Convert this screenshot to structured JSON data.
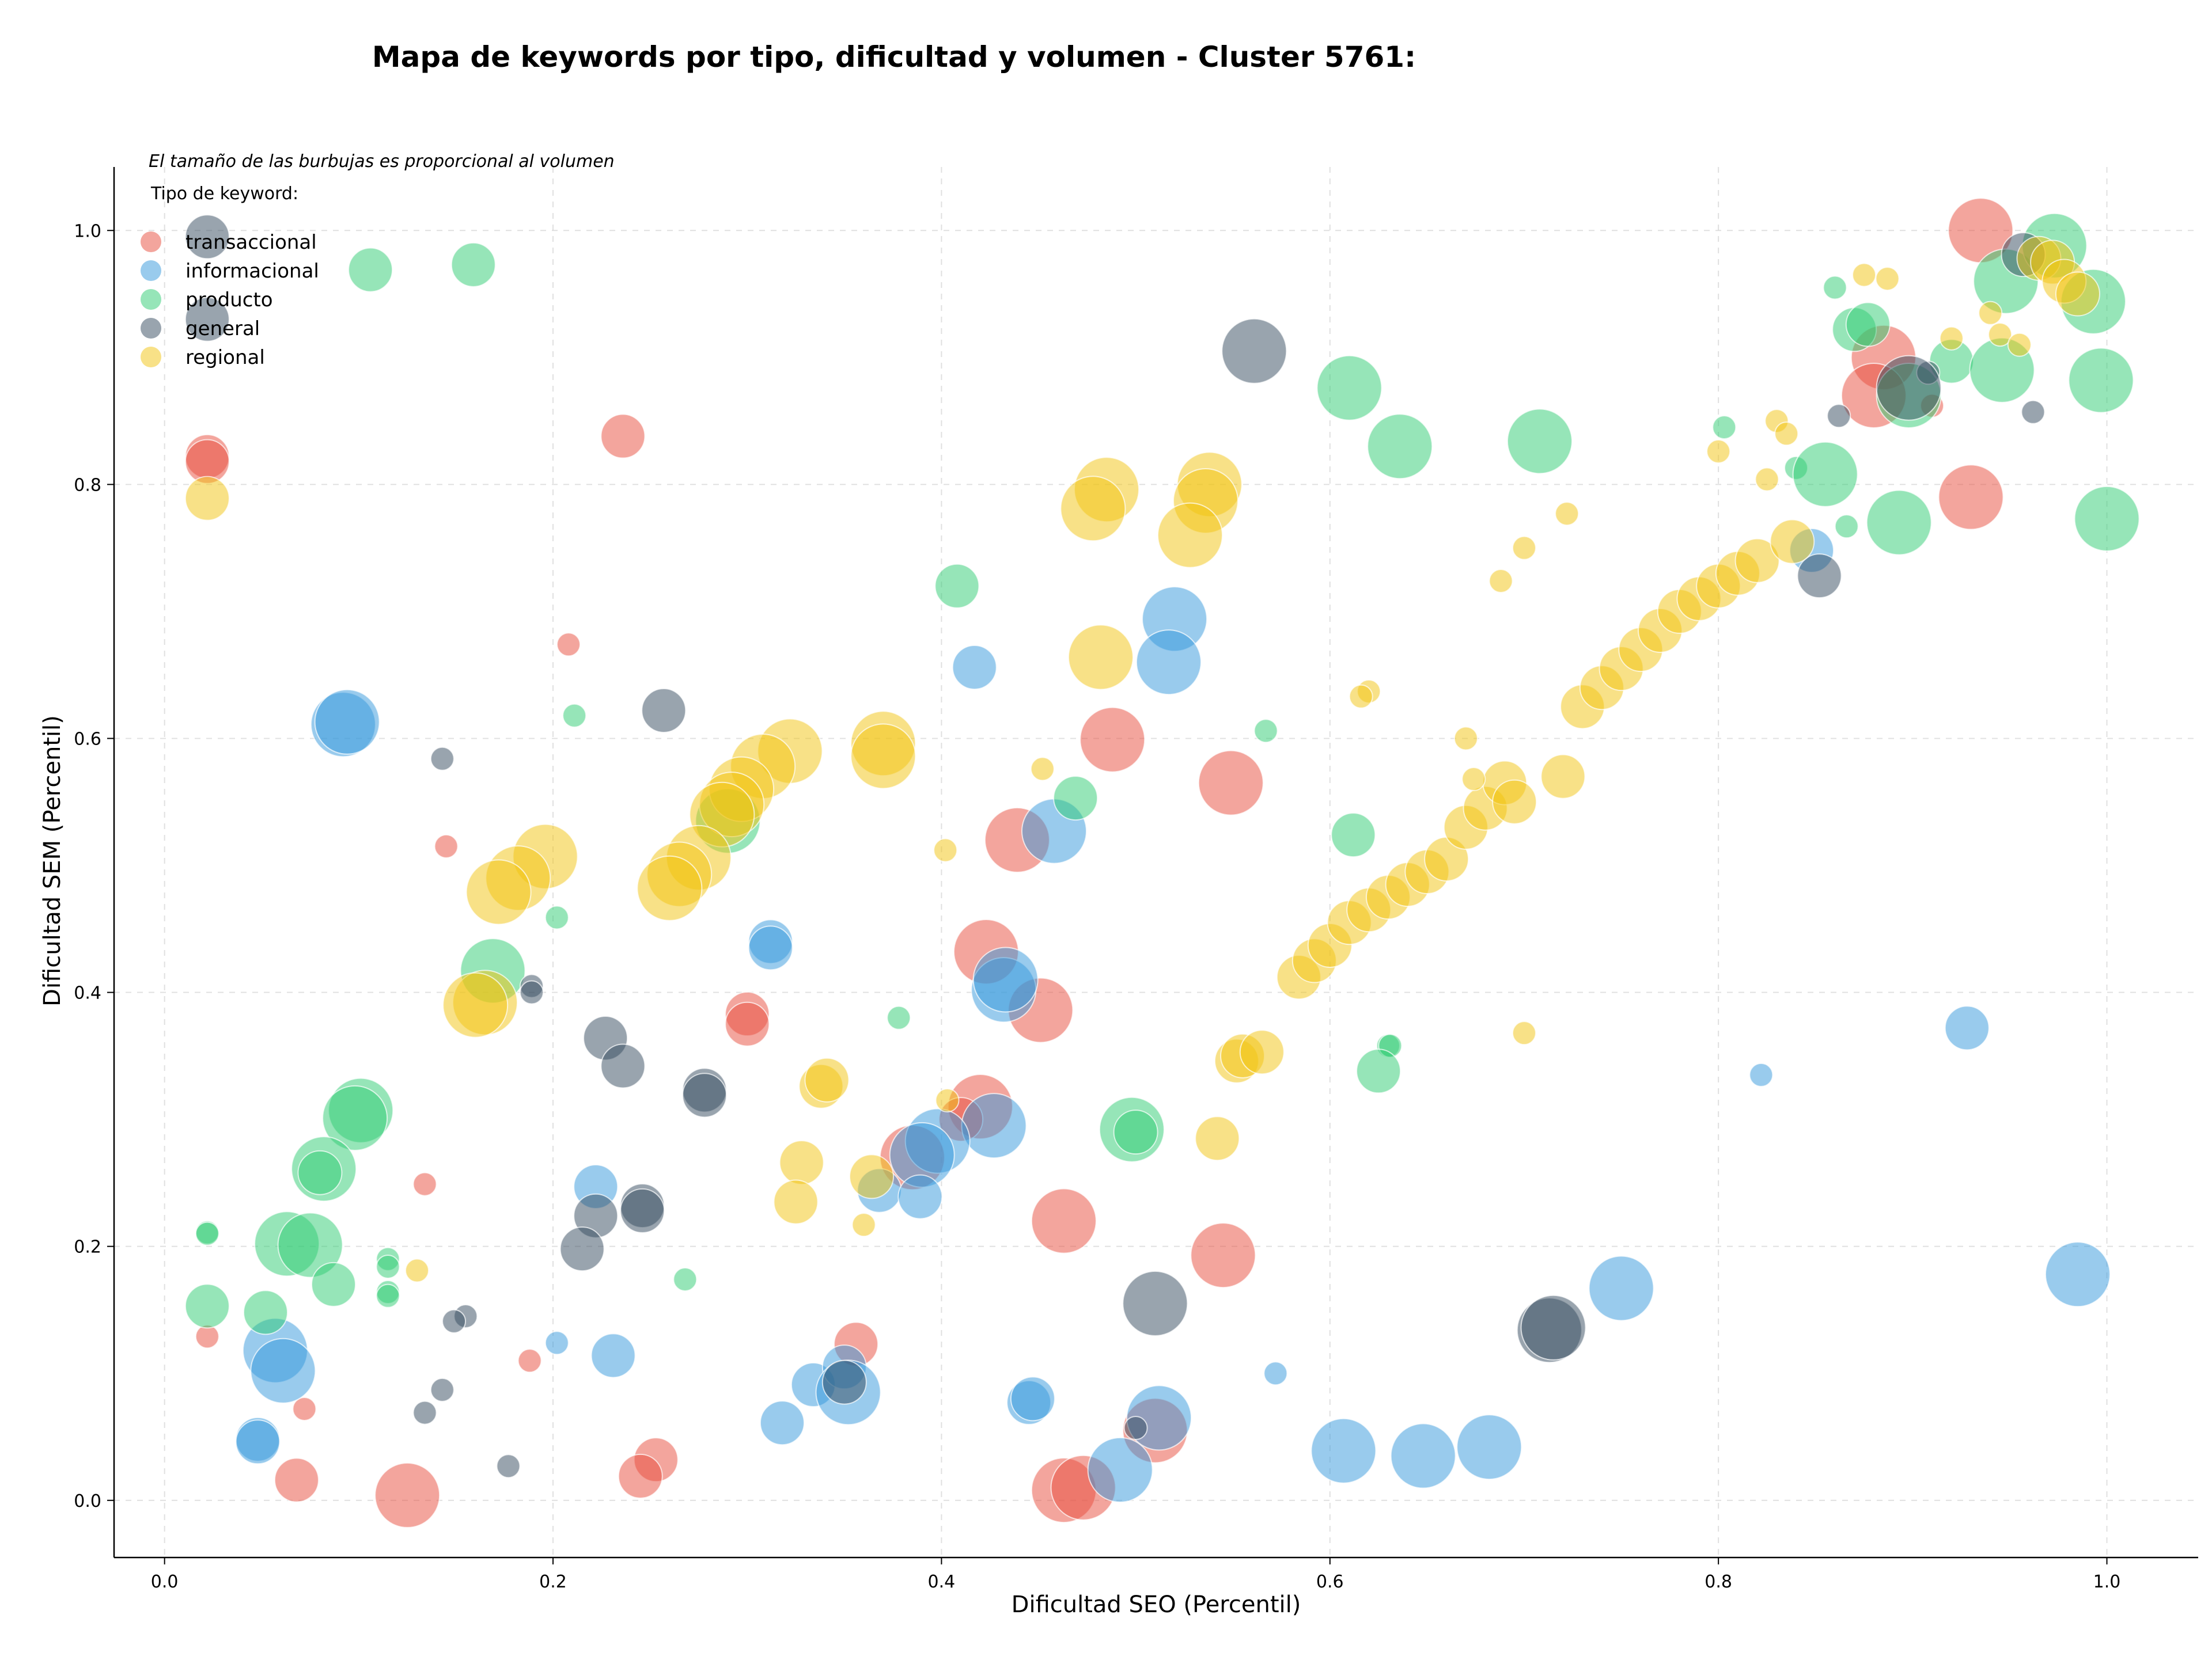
{
  "chart_data": {
    "type": "scatter",
    "title": "Mapa de keywords por tipo, dificultad y volumen - Cluster 5761:",
    "xlabel": "Dificultad SEO (Percentil)",
    "ylabel": "Dificultad SEM (Percentil)",
    "xlim": [
      -0.026,
      1.047
    ],
    "ylim": [
      -0.045,
      1.05
    ],
    "xticks": [
      "0.0",
      "0.2",
      "0.4",
      "0.6",
      "0.8",
      "1.0"
    ],
    "yticks": [
      "0.0",
      "0.2",
      "0.4",
      "0.6",
      "0.8",
      "1.0"
    ],
    "grid": true,
    "note": "El tamaño de las burbujas es proporcional al volumen",
    "legend": {
      "title": "Tipo de keyword:",
      "placement": "top-left"
    },
    "series": [
      {
        "name": "transaccional",
        "color": "#e74c3c",
        "points": [
          [
            0.935,
            1.0,
            3
          ],
          [
            0.885,
            0.9,
            3
          ],
          [
            0.88,
            0.87,
            3
          ],
          [
            0.93,
            0.79,
            3
          ],
          [
            0.022,
            0.822,
            2
          ],
          [
            0.022,
            0.818,
            2
          ],
          [
            0.236,
            0.838,
            2
          ],
          [
            0.208,
            0.674,
            1
          ],
          [
            0.488,
            0.599,
            3
          ],
          [
            0.549,
            0.565,
            3
          ],
          [
            0.439,
            0.52,
            3
          ],
          [
            0.145,
            0.515,
            1
          ],
          [
            0.423,
            0.432,
            3
          ],
          [
            0.451,
            0.386,
            3
          ],
          [
            0.3,
            0.383,
            2
          ],
          [
            0.3,
            0.375,
            2
          ],
          [
            0.42,
            0.31,
            3
          ],
          [
            0.41,
            0.3,
            2
          ],
          [
            0.385,
            0.27,
            3
          ],
          [
            0.134,
            0.249,
            1
          ],
          [
            0.463,
            0.22,
            3
          ],
          [
            0.545,
            0.193,
            3
          ],
          [
            0.022,
            0.129,
            1
          ],
          [
            0.356,
            0.123,
            2
          ],
          [
            0.188,
            0.11,
            1
          ],
          [
            0.072,
            0.072,
            1
          ],
          [
            0.253,
            0.032,
            2
          ],
          [
            0.245,
            0.019,
            2
          ],
          [
            0.068,
            0.016,
            2
          ],
          [
            0.125,
            0.004,
            3
          ],
          [
            0.463,
            0.008,
            3
          ],
          [
            0.473,
            0.01,
            3
          ],
          [
            0.51,
            0.055,
            3
          ],
          [
            0.91,
            0.862,
            1
          ]
        ]
      },
      {
        "name": "informacional",
        "color": "#3498db",
        "points": [
          [
            0.092,
            0.611,
            3
          ],
          [
            0.094,
            0.613,
            3
          ],
          [
            0.52,
            0.694,
            3
          ],
          [
            0.517,
            0.66,
            3
          ],
          [
            0.417,
            0.656,
            2
          ],
          [
            0.458,
            0.527,
            3
          ],
          [
            0.312,
            0.44,
            2
          ],
          [
            0.312,
            0.435,
            2
          ],
          [
            0.432,
            0.402,
            3
          ],
          [
            0.433,
            0.41,
            3
          ],
          [
            0.427,
            0.295,
            3
          ],
          [
            0.398,
            0.283,
            3
          ],
          [
            0.39,
            0.272,
            3
          ],
          [
            0.368,
            0.244,
            2
          ],
          [
            0.389,
            0.239,
            2
          ],
          [
            0.222,
            0.247,
            2
          ],
          [
            0.057,
            0.118,
            3
          ],
          [
            0.061,
            0.102,
            3
          ],
          [
            0.202,
            0.124,
            1
          ],
          [
            0.231,
            0.114,
            2
          ],
          [
            0.048,
            0.048,
            2
          ],
          [
            0.048,
            0.046,
            2
          ],
          [
            0.318,
            0.061,
            2
          ],
          [
            0.334,
            0.091,
            2
          ],
          [
            0.35,
            0.105,
            2
          ],
          [
            0.352,
            0.085,
            3
          ],
          [
            0.445,
            0.077,
            2
          ],
          [
            0.447,
            0.08,
            2
          ],
          [
            0.492,
            0.024,
            3
          ],
          [
            0.512,
            0.065,
            3
          ],
          [
            0.572,
            0.1,
            1
          ],
          [
            0.607,
            0.039,
            3
          ],
          [
            0.648,
            0.035,
            3
          ],
          [
            0.682,
            0.042,
            3
          ],
          [
            0.75,
            0.167,
            3
          ],
          [
            0.822,
            0.335,
            1
          ],
          [
            0.928,
            0.372,
            2
          ],
          [
            0.985,
            0.178,
            3
          ],
          [
            0.848,
            0.748,
            2
          ]
        ]
      },
      {
        "name": "producto",
        "color": "#2ecc71",
        "points": [
          [
            0.106,
            0.969,
            2
          ],
          [
            0.159,
            0.973,
            2
          ],
          [
            0.61,
            0.876,
            3
          ],
          [
            0.636,
            0.83,
            3
          ],
          [
            0.708,
            0.834,
            3
          ],
          [
            0.408,
            0.72,
            2
          ],
          [
            0.211,
            0.618,
            1
          ],
          [
            0.469,
            0.553,
            2
          ],
          [
            0.612,
            0.524,
            2
          ],
          [
            0.567,
            0.606,
            1
          ],
          [
            0.202,
            0.459,
            1
          ],
          [
            0.169,
            0.417,
            3
          ],
          [
            0.378,
            0.38,
            1
          ],
          [
            0.63,
            0.358,
            1
          ],
          [
            0.631,
            0.358,
            1
          ],
          [
            0.625,
            0.338,
            2
          ],
          [
            0.498,
            0.292,
            3
          ],
          [
            0.5,
            0.29,
            2
          ],
          [
            0.101,
            0.307,
            3
          ],
          [
            0.098,
            0.301,
            3
          ],
          [
            0.082,
            0.261,
            3
          ],
          [
            0.08,
            0.258,
            2
          ],
          [
            0.063,
            0.202,
            3
          ],
          [
            0.075,
            0.201,
            3
          ],
          [
            0.022,
            0.211,
            1
          ],
          [
            0.022,
            0.21,
            1
          ],
          [
            0.087,
            0.17,
            2
          ],
          [
            0.115,
            0.19,
            1
          ],
          [
            0.115,
            0.184,
            1
          ],
          [
            0.115,
            0.164,
            1
          ],
          [
            0.115,
            0.161,
            1
          ],
          [
            0.268,
            0.174,
            1
          ],
          [
            0.022,
            0.153,
            2
          ],
          [
            0.052,
            0.148,
            2
          ],
          [
            0.29,
            0.535,
            3
          ],
          [
            0.86,
            0.955,
            1
          ],
          [
            0.87,
            0.922,
            2
          ],
          [
            0.877,
            0.926,
            2
          ],
          [
            0.948,
            0.96,
            3
          ],
          [
            0.973,
            0.988,
            3
          ],
          [
            0.993,
            0.944,
            3
          ],
          [
            0.997,
            0.882,
            3
          ],
          [
            1.0,
            0.773,
            3
          ],
          [
            0.893,
            0.77,
            3
          ],
          [
            0.866,
            0.767,
            1
          ],
          [
            0.84,
            0.813,
            1
          ],
          [
            0.855,
            0.808,
            3
          ],
          [
            0.898,
            0.87,
            3
          ],
          [
            0.92,
            0.897,
            2
          ],
          [
            0.946,
            0.89,
            3
          ],
          [
            0.803,
            0.845,
            1
          ]
        ]
      },
      {
        "name": "general",
        "color": "#34495e",
        "points": [
          [
            0.022,
            0.995,
            2
          ],
          [
            0.022,
            0.93,
            2
          ],
          [
            0.561,
            0.905,
            3
          ],
          [
            0.257,
            0.622,
            2
          ],
          [
            0.143,
            0.584,
            1
          ],
          [
            0.189,
            0.405,
            1
          ],
          [
            0.189,
            0.4,
            1
          ],
          [
            0.227,
            0.364,
            2
          ],
          [
            0.236,
            0.342,
            2
          ],
          [
            0.278,
            0.323,
            2
          ],
          [
            0.278,
            0.319,
            2
          ],
          [
            0.246,
            0.232,
            2
          ],
          [
            0.246,
            0.228,
            2
          ],
          [
            0.222,
            0.224,
            2
          ],
          [
            0.215,
            0.198,
            2
          ],
          [
            0.155,
            0.145,
            1
          ],
          [
            0.149,
            0.141,
            1
          ],
          [
            0.143,
            0.087,
            1
          ],
          [
            0.134,
            0.069,
            1
          ],
          [
            0.177,
            0.027,
            1
          ],
          [
            0.35,
            0.093,
            2
          ],
          [
            0.51,
            0.155,
            3
          ],
          [
            0.5,
            0.057,
            1
          ],
          [
            0.713,
            0.134,
            3
          ],
          [
            0.715,
            0.136,
            3
          ],
          [
            0.852,
            0.728,
            2
          ],
          [
            0.862,
            0.854,
            1
          ],
          [
            0.908,
            0.888,
            1
          ],
          [
            0.962,
            0.857,
            1
          ],
          [
            0.957,
            0.981,
            2
          ],
          [
            0.898,
            0.876,
            3
          ]
        ]
      },
      {
        "name": "regional",
        "color": "#f1c40f",
        "points": [
          [
            0.022,
            0.789,
            2
          ],
          [
            0.485,
            0.796,
            3
          ],
          [
            0.478,
            0.781,
            3
          ],
          [
            0.538,
            0.8,
            3
          ],
          [
            0.536,
            0.787,
            3
          ],
          [
            0.528,
            0.76,
            3
          ],
          [
            0.482,
            0.664,
            3
          ],
          [
            0.322,
            0.59,
            3
          ],
          [
            0.308,
            0.578,
            3
          ],
          [
            0.297,
            0.56,
            3
          ],
          [
            0.292,
            0.548,
            3
          ],
          [
            0.287,
            0.54,
            3
          ],
          [
            0.275,
            0.506,
            3
          ],
          [
            0.265,
            0.493,
            3
          ],
          [
            0.26,
            0.482,
            3
          ],
          [
            0.196,
            0.507,
            3
          ],
          [
            0.182,
            0.49,
            3
          ],
          [
            0.172,
            0.479,
            3
          ],
          [
            0.165,
            0.392,
            3
          ],
          [
            0.16,
            0.39,
            3
          ],
          [
            0.37,
            0.596,
            3
          ],
          [
            0.37,
            0.586,
            3
          ],
          [
            0.452,
            0.576,
            1
          ],
          [
            0.402,
            0.512,
            1
          ],
          [
            0.338,
            0.326,
            2
          ],
          [
            0.341,
            0.331,
            2
          ],
          [
            0.328,
            0.266,
            2
          ],
          [
            0.325,
            0.235,
            2
          ],
          [
            0.364,
            0.255,
            2
          ],
          [
            0.36,
            0.217,
            1
          ],
          [
            0.403,
            0.315,
            1
          ],
          [
            0.552,
            0.346,
            2
          ],
          [
            0.555,
            0.35,
            2
          ],
          [
            0.565,
            0.353,
            2
          ],
          [
            0.542,
            0.285,
            2
          ],
          [
            0.13,
            0.181,
            1
          ],
          [
            0.584,
            0.412,
            2
          ],
          [
            0.592,
            0.425,
            2
          ],
          [
            0.6,
            0.437,
            2
          ],
          [
            0.61,
            0.455,
            2
          ],
          [
            0.62,
            0.465,
            2
          ],
          [
            0.63,
            0.475,
            2
          ],
          [
            0.64,
            0.485,
            2
          ],
          [
            0.65,
            0.495,
            2
          ],
          [
            0.66,
            0.505,
            2
          ],
          [
            0.67,
            0.53,
            2
          ],
          [
            0.68,
            0.545,
            2
          ],
          [
            0.69,
            0.565,
            2
          ],
          [
            0.695,
            0.55,
            2
          ],
          [
            0.72,
            0.57,
            2
          ],
          [
            0.67,
            0.6,
            1
          ],
          [
            0.674,
            0.568,
            1
          ],
          [
            0.62,
            0.637,
            1
          ],
          [
            0.616,
            0.633,
            1
          ],
          [
            0.7,
            0.368,
            1
          ],
          [
            0.688,
            0.724,
            1
          ],
          [
            0.7,
            0.75,
            1
          ],
          [
            0.722,
            0.777,
            1
          ],
          [
            0.73,
            0.625,
            2
          ],
          [
            0.74,
            0.64,
            2
          ],
          [
            0.75,
            0.655,
            2
          ],
          [
            0.76,
            0.67,
            2
          ],
          [
            0.77,
            0.685,
            2
          ],
          [
            0.78,
            0.7,
            2
          ],
          [
            0.79,
            0.71,
            2
          ],
          [
            0.8,
            0.72,
            2
          ],
          [
            0.81,
            0.73,
            2
          ],
          [
            0.82,
            0.74,
            2
          ],
          [
            0.838,
            0.755,
            2
          ],
          [
            0.8,
            0.826,
            1
          ],
          [
            0.825,
            0.804,
            1
          ],
          [
            0.83,
            0.85,
            1
          ],
          [
            0.835,
            0.84,
            1
          ],
          [
            0.875,
            0.965,
            1
          ],
          [
            0.887,
            0.962,
            1
          ],
          [
            0.92,
            0.915,
            1
          ],
          [
            0.94,
            0.935,
            1
          ],
          [
            0.945,
            0.918,
            1
          ],
          [
            0.955,
            0.91,
            1
          ],
          [
            0.965,
            0.978,
            2
          ],
          [
            0.972,
            0.975,
            2
          ],
          [
            0.978,
            0.96,
            2
          ],
          [
            0.985,
            0.95,
            2
          ]
        ]
      }
    ]
  }
}
